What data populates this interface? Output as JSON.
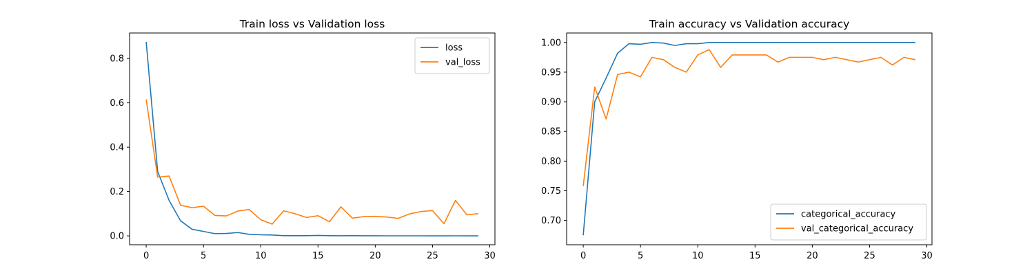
{
  "chart_data": [
    {
      "type": "line",
      "title": "Train loss vs Validation loss",
      "xlabel": "",
      "ylabel": "",
      "xlim": [
        -1.45,
        30.45
      ],
      "ylim": [
        -0.04,
        0.915
      ],
      "xticks": [
        0,
        5,
        10,
        15,
        20,
        25,
        30
      ],
      "yticks": [
        0.0,
        0.2,
        0.4,
        0.6,
        0.8
      ],
      "ytick_labels": [
        "0.0",
        "0.2",
        "0.4",
        "0.6",
        "0.8"
      ],
      "grid": false,
      "legend_position": "upper-right",
      "x": [
        0,
        1,
        2,
        3,
        4,
        5,
        6,
        7,
        8,
        9,
        10,
        11,
        12,
        13,
        14,
        15,
        16,
        17,
        18,
        19,
        20,
        21,
        22,
        23,
        24,
        25,
        26,
        27,
        28,
        29
      ],
      "series": [
        {
          "name": "loss",
          "color": "#1f77b4",
          "values": [
            0.875,
            0.29,
            0.16,
            0.068,
            0.03,
            0.02,
            0.01,
            0.011,
            0.015,
            0.007,
            0.005,
            0.004,
            0.001,
            0.001,
            0.001,
            0.002,
            0.001,
            0.0005,
            0.001,
            0.0005,
            0.0004,
            0.0003,
            0.0003,
            0.0003,
            0.0003,
            0.0002,
            0.0002,
            0.0003,
            0.0002,
            0.0001
          ]
        },
        {
          "name": "val_loss",
          "color": "#ff7f0e",
          "values": [
            0.615,
            0.265,
            0.27,
            0.138,
            0.127,
            0.134,
            0.092,
            0.09,
            0.112,
            0.119,
            0.073,
            0.053,
            0.113,
            0.1,
            0.083,
            0.091,
            0.064,
            0.131,
            0.08,
            0.087,
            0.088,
            0.085,
            0.079,
            0.099,
            0.11,
            0.114,
            0.055,
            0.16,
            0.095,
            0.1
          ]
        }
      ]
    },
    {
      "type": "line",
      "title": "Train accuracy vs Validation accuracy",
      "xlabel": "",
      "ylabel": "",
      "xlim": [
        -1.45,
        30.45
      ],
      "ylim": [
        0.659,
        1.016
      ],
      "xticks": [
        0,
        5,
        10,
        15,
        20,
        25,
        30
      ],
      "yticks": [
        0.7,
        0.75,
        0.8,
        0.85,
        0.9,
        0.95,
        1.0
      ],
      "ytick_labels": [
        "0.70",
        "0.75",
        "0.80",
        "0.85",
        "0.90",
        "0.95",
        "1.00"
      ],
      "grid": false,
      "legend_position": "lower-right",
      "x": [
        0,
        1,
        2,
        3,
        4,
        5,
        6,
        7,
        8,
        9,
        10,
        11,
        12,
        13,
        14,
        15,
        16,
        17,
        18,
        19,
        20,
        21,
        22,
        23,
        24,
        25,
        26,
        27,
        28,
        29
      ],
      "series": [
        {
          "name": "categorical_accuracy",
          "color": "#1f77b4",
          "values": [
            0.675,
            0.9,
            0.94,
            0.982,
            0.998,
            0.997,
            1.0,
            0.999,
            0.995,
            0.998,
            0.998,
            1.0,
            1.0,
            1.0,
            1.0,
            1.0,
            1.0,
            1.0,
            1.0,
            1.0,
            1.0,
            1.0,
            1.0,
            1.0,
            1.0,
            1.0,
            1.0,
            1.0,
            1.0,
            1.0
          ]
        },
        {
          "name": "val_categorical_accuracy",
          "color": "#ff7f0e",
          "values": [
            0.758,
            0.925,
            0.871,
            0.946,
            0.95,
            0.942,
            0.975,
            0.971,
            0.958,
            0.95,
            0.979,
            0.988,
            0.958,
            0.979,
            0.979,
            0.979,
            0.979,
            0.967,
            0.975,
            0.975,
            0.975,
            0.971,
            0.975,
            0.971,
            0.967,
            0.971,
            0.975,
            0.962,
            0.975,
            0.971
          ]
        }
      ]
    }
  ]
}
